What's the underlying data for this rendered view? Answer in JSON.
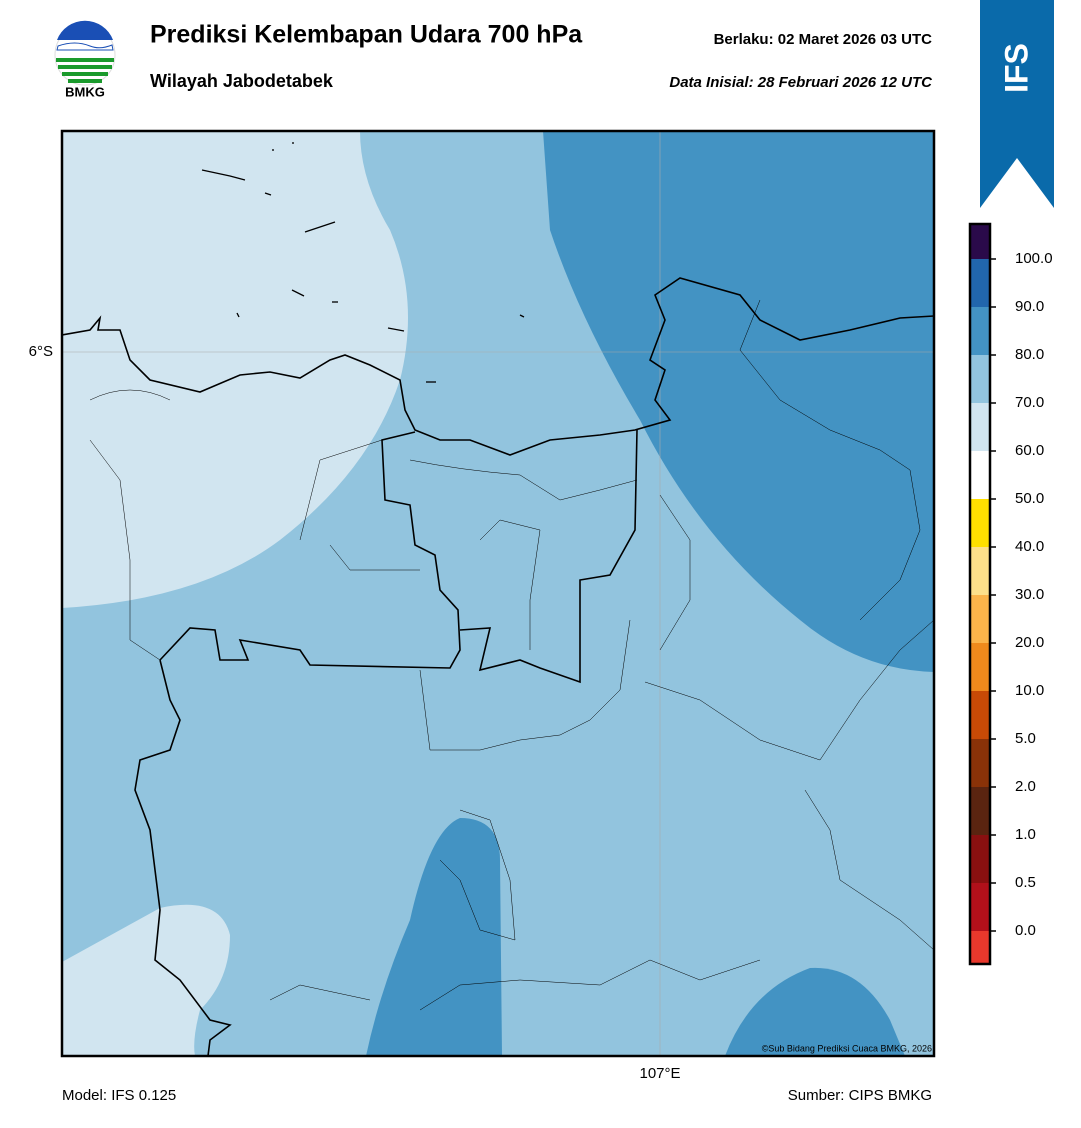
{
  "header": {
    "logo_text": "BMKG",
    "title": "Prediksi Kelembapan Udara 700 hPa",
    "subtitle": "Wilayah Jabodetabek",
    "valid": "Berlaku:  02 Maret 2026 03 UTC",
    "initial": "Data Inisial:  28 Februari 2026 12 UTC",
    "badge": "IFS"
  },
  "map": {
    "lat_label": "6°S",
    "lon_label": "107°E",
    "copyright": "©Sub Bidang Prediksi Cuaca BMKG, 2026"
  },
  "colorbar": {
    "ticks": [
      {
        "value": 0,
        "label": "0.0"
      },
      {
        "value": 0.5,
        "label": "0.5"
      },
      {
        "value": 1,
        "label": "1.0"
      },
      {
        "value": 2,
        "label": "2.0"
      },
      {
        "value": 5,
        "label": "5.0"
      },
      {
        "value": 10,
        "label": "10.0"
      },
      {
        "value": 20,
        "label": "20.0"
      },
      {
        "value": 30,
        "label": "30.0"
      },
      {
        "value": 40,
        "label": "40.0"
      },
      {
        "value": 50,
        "label": "50.0"
      },
      {
        "value": 60,
        "label": "60.0"
      },
      {
        "value": 70,
        "label": "70.0"
      },
      {
        "value": 80,
        "label": "80.0"
      },
      {
        "value": 90,
        "label": "90.0"
      },
      {
        "value": 100,
        "label": "100.0"
      }
    ],
    "colors": [
      "#e8382c",
      "#b2101a",
      "#8a1010",
      "#5a2410",
      "#8a3208",
      "#c84a06",
      "#f08a1c",
      "#fbb44a",
      "#fde08a",
      "#ffe000",
      "#ffffff",
      "#d1e5f0",
      "#92c4de",
      "#4393c3",
      "#2166ac",
      "#053061",
      "#2a0a4a"
    ]
  },
  "footer": {
    "model": "Model: IFS 0.125",
    "source": "Sumber: CIPS BMKG"
  }
}
